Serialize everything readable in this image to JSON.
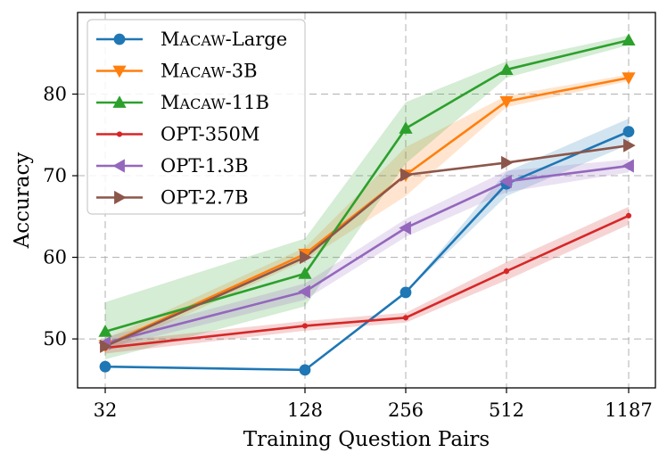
{
  "chart_data": {
    "type": "line",
    "title": "",
    "xlabel": "Training Question Pairs",
    "ylabel": "Accuracy",
    "x_categories": [
      "32",
      "128",
      "256",
      "512",
      "1187"
    ],
    "ylim": [
      44,
      90
    ],
    "yticks": [
      50,
      60,
      70,
      80
    ],
    "grid": true,
    "legend_position": "top-left",
    "series": [
      {
        "name": "Macaw-Large",
        "display_base": "M",
        "display_smallcaps": "acaw",
        "display_suffix": "-Large",
        "color": "#1f77b4",
        "marker": "circle",
        "values": [
          46.6,
          46.2,
          55.7,
          69.0,
          75.4
        ],
        "lower": [
          46.6,
          46.2,
          55.7,
          67.5,
          73.8
        ],
        "upper": [
          46.6,
          46.2,
          55.7,
          70.5,
          77.0
        ]
      },
      {
        "name": "Macaw-3B",
        "display_base": "M",
        "display_smallcaps": "acaw",
        "display_suffix": "-3B",
        "color": "#ff7f0e",
        "marker": "triangle-down",
        "values": [
          49.2,
          60.4,
          70.1,
          79.1,
          82.0
        ],
        "lower": [
          48.4,
          59.6,
          67.5,
          78.4,
          81.6
        ],
        "upper": [
          50.0,
          61.2,
          73.5,
          79.8,
          82.4
        ]
      },
      {
        "name": "Macaw-11B",
        "display_base": "M",
        "display_smallcaps": "acaw",
        "display_suffix": "-11B",
        "color": "#2ca02c",
        "marker": "triangle-up",
        "values": [
          50.9,
          58.0,
          75.8,
          83.0,
          86.6
        ],
        "lower": [
          47.5,
          54.0,
          71.5,
          82.0,
          86.0
        ],
        "upper": [
          54.5,
          62.3,
          79.0,
          84.0,
          87.2
        ]
      },
      {
        "name": "OPT-350M",
        "display_base": "OPT-350M",
        "display_smallcaps": "",
        "display_suffix": "",
        "color": "#d62728",
        "marker": "point",
        "values": [
          48.9,
          51.6,
          52.6,
          58.3,
          65.1
        ],
        "lower": [
          48.2,
          51.0,
          52.0,
          57.2,
          64.0
        ],
        "upper": [
          49.6,
          52.2,
          53.2,
          59.4,
          66.2
        ]
      },
      {
        "name": "OPT-1.3B",
        "display_base": "OPT-1.3B",
        "display_smallcaps": "",
        "display_suffix": "",
        "color": "#9467bd",
        "marker": "triangle-left",
        "values": [
          49.5,
          55.8,
          63.6,
          69.3,
          71.2
        ],
        "lower": [
          48.8,
          54.8,
          62.5,
          68.0,
          70.4
        ],
        "upper": [
          50.2,
          56.8,
          64.7,
          70.6,
          72.0
        ]
      },
      {
        "name": "OPT-2.7B",
        "display_base": "OPT-2.7B",
        "display_smallcaps": "",
        "display_suffix": "",
        "color": "#8c564b",
        "marker": "triangle-right",
        "values": [
          49.1,
          60.0,
          70.1,
          71.6,
          73.7
        ],
        "lower": [
          49.1,
          60.0,
          70.1,
          71.6,
          73.7
        ],
        "upper": [
          49.1,
          60.0,
          70.1,
          71.6,
          73.7
        ]
      }
    ]
  }
}
